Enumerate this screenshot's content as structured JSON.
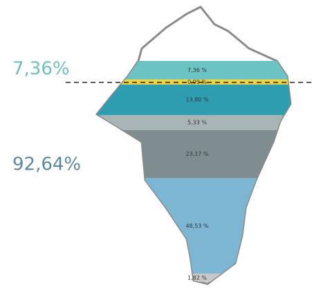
{
  "chart_data": {
    "type": "iceberg",
    "annotations": {
      "above": "7,36%",
      "below": "92,64%"
    },
    "values": [
      7.36,
      0.09,
      13.8,
      5.33,
      23.17,
      48.53,
      1.82
    ],
    "value_labels": [
      "7,36 %",
      "0,09 %",
      "13,80 %",
      "5,33 %",
      "23,17 %",
      "48,53 %",
      "1,82 %"
    ],
    "colors": [
      "#6cc3c4",
      "#f0d43a",
      "#2f9db0",
      "#a9b4b6",
      "#7f8d90",
      "#7db6d2",
      "#c8c8c8"
    ]
  }
}
